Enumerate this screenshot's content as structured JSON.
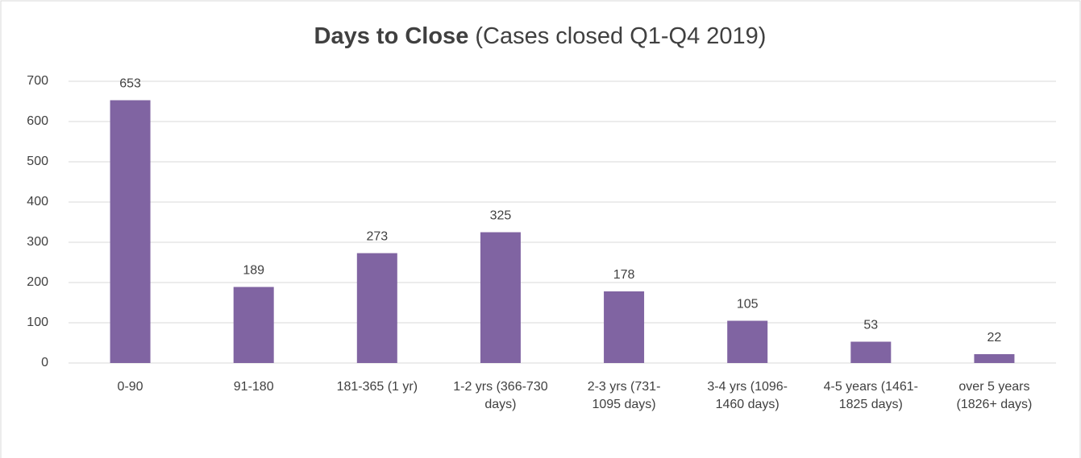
{
  "chart_data": {
    "type": "bar",
    "title": "Days to Close",
    "subtitle": "(Cases closed Q1-Q4 2019)",
    "categories": [
      "0-90",
      "91-180",
      "181-365 (1 yr)",
      "1-2 yrs (366-730 days)",
      "2-3 yrs (731-1095 days)",
      "3-4 yrs (1096-1460 days)",
      "4-5 years (1461-1825 days)",
      "over 5 years (1826+ days)"
    ],
    "values": [
      653,
      189,
      273,
      325,
      178,
      105,
      53,
      22
    ],
    "color": "#8064a2",
    "ylim": [
      0,
      700
    ],
    "yticks": [
      0,
      100,
      200,
      300,
      400,
      500,
      600,
      700
    ],
    "grid": true
  }
}
